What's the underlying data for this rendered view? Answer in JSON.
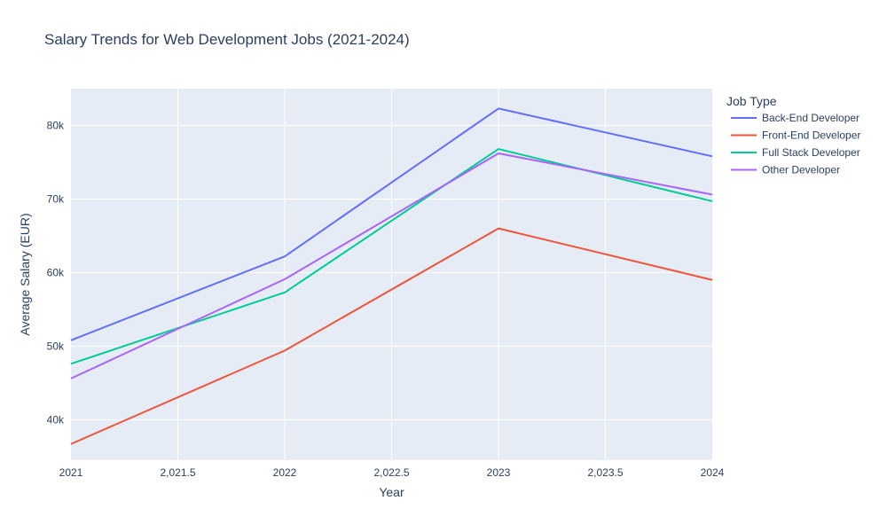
{
  "chart_data": {
    "type": "line",
    "title": "Salary Trends for Web Development Jobs (2021-2024)",
    "xlabel": "Year",
    "ylabel": "Average Salary (EUR)",
    "x": [
      2021,
      2022,
      2023,
      2024
    ],
    "xlim": [
      2021,
      2024
    ],
    "ylim": [
      34500,
      85000
    ],
    "x_ticks": [
      2021,
      2021.5,
      2022,
      2022.5,
      2023,
      2023.5,
      2024
    ],
    "x_tick_labels": [
      "2021",
      "2,021.5",
      "2022",
      "2,022.5",
      "2023",
      "2,023.5",
      "2024"
    ],
    "y_ticks": [
      40000,
      50000,
      60000,
      70000,
      80000
    ],
    "y_tick_labels": [
      "40k",
      "50k",
      "60k",
      "70k",
      "80k"
    ],
    "grid": true,
    "legend": {
      "title": "Job Type",
      "position": "right"
    },
    "series": [
      {
        "name": "Back-End Developer",
        "color": "#636efa",
        "values": [
          50800,
          62200,
          82300,
          75800
        ]
      },
      {
        "name": "Front-End Developer",
        "color": "#ef553b",
        "values": [
          36700,
          49400,
          66000,
          59000
        ]
      },
      {
        "name": "Full Stack Developer",
        "color": "#00cc96",
        "values": [
          47600,
          57300,
          76800,
          69700
        ]
      },
      {
        "name": "Other Developer",
        "color": "#ab63fa",
        "values": [
          45600,
          59100,
          76200,
          70600
        ]
      }
    ]
  }
}
